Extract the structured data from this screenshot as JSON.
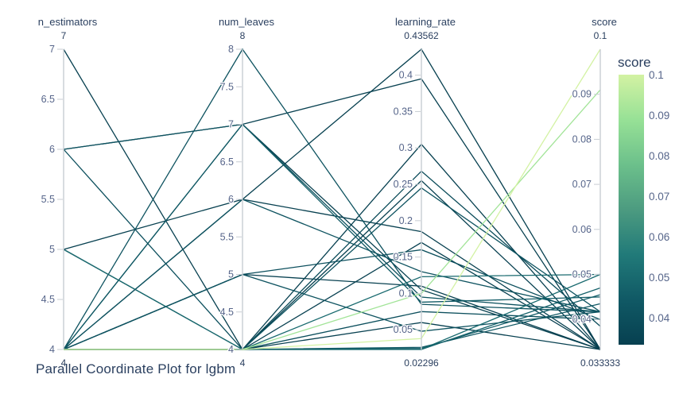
{
  "chart_data": {
    "type": "parallel-coordinates",
    "title": "Parallel Coordinate Plot for lgbm",
    "columns": [
      "n_estimators",
      "num_leaves",
      "learning_rate",
      "score"
    ],
    "axes": [
      {
        "name": "n_estimators",
        "min": 4,
        "max": 7,
        "top_label": "7",
        "bottom_label": "4",
        "tick_values": [
          7,
          6.5,
          6,
          5.5,
          5,
          4.5,
          4
        ],
        "tick_labels": [
          "7",
          "6.5",
          "6",
          "5.5",
          "5",
          "4.5",
          "4"
        ]
      },
      {
        "name": "num_leaves",
        "min": 4,
        "max": 8,
        "top_label": "8",
        "bottom_label": "4",
        "tick_values": [
          8,
          7.5,
          7,
          6.5,
          6,
          5.5,
          5,
          4.5,
          4
        ],
        "tick_labels": [
          "8",
          "7.5",
          "7",
          "6.5",
          "6",
          "5.5",
          "5",
          "4.5",
          "4"
        ]
      },
      {
        "name": "learning_rate",
        "min": 0.02296,
        "max": 0.43562,
        "top_label": "0.43562",
        "bottom_label": "0.02296",
        "tick_values": [
          0.4,
          0.35,
          0.3,
          0.25,
          0.2,
          0.15,
          0.1,
          0.05
        ],
        "tick_labels": [
          "0.4",
          "0.35",
          "0.3",
          "0.25",
          "0.2",
          "0.15",
          "0.1",
          "0.05"
        ]
      },
      {
        "name": "score",
        "min": 0.033333,
        "max": 0.1,
        "top_label": "0.1",
        "bottom_label": "0.033333",
        "tick_values": [
          0.09,
          0.08,
          0.07,
          0.06,
          0.05,
          0.04
        ],
        "tick_labels": [
          "0.09",
          "0.08",
          "0.07",
          "0.06",
          "0.05",
          "0.04"
        ]
      }
    ],
    "trials": [
      [
        4,
        4,
        0.038,
        0.1
      ],
      [
        4,
        4,
        0.1,
        0.091
      ],
      [
        6,
        7,
        0.395,
        0.033333
      ],
      [
        5,
        6,
        0.43562,
        0.033333
      ],
      [
        7,
        4,
        0.255,
        0.033333
      ],
      [
        4,
        8,
        0.085,
        0.0417
      ],
      [
        4,
        7,
        0.105,
        0.033333
      ],
      [
        6,
        7,
        0.095,
        0.0417
      ],
      [
        4,
        7,
        0.088,
        0.045
      ],
      [
        4,
        4,
        0.305,
        0.033333
      ],
      [
        4,
        6,
        0.185,
        0.033333
      ],
      [
        4,
        5,
        0.16,
        0.04
      ],
      [
        5,
        4,
        0.123,
        0.05
      ],
      [
        4,
        4,
        0.023,
        0.047
      ],
      [
        4,
        4,
        0.0245,
        0.0455
      ],
      [
        4,
        4,
        0.026,
        0.0435
      ],
      [
        4,
        4,
        0.245,
        0.0417
      ],
      [
        4,
        4,
        0.268,
        0.0385
      ],
      [
        4,
        6,
        0.13,
        0.0417
      ],
      [
        4,
        5,
        0.11,
        0.033333
      ],
      [
        4,
        5,
        0.048,
        0.0417
      ],
      [
        4,
        4,
        0.17,
        0.033333
      ],
      [
        6,
        4,
        0.075,
        0.04
      ],
      [
        5,
        4,
        0.06,
        0.033333
      ],
      [
        4,
        4,
        0.0232,
        0.05
      ]
    ],
    "colorbar": {
      "title": "score",
      "min": 0.033333,
      "max": 0.1,
      "tick_values": [
        0.1,
        0.09,
        0.08,
        0.07,
        0.06,
        0.05,
        0.04
      ],
      "tick_labels": [
        "0.1",
        "0.09",
        "0.08",
        "0.07",
        "0.06",
        "0.05",
        "0.04"
      ],
      "colorscale": [
        "#074050",
        "#105965",
        "#217a79",
        "#4c9b80",
        "#6cc08b",
        "#97e196",
        "#d3f2a3"
      ]
    },
    "style": {
      "title_color": "#2a3f5f",
      "tick_color": "#56658a",
      "axis_line_color": "#c8cdd3",
      "label_color": "#2a3f5f"
    }
  }
}
